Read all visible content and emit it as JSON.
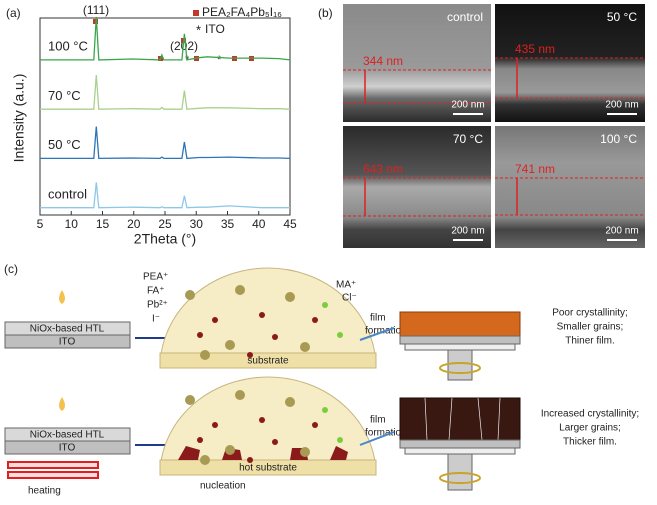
{
  "chart_data": {
    "type": "line",
    "label": "(a)",
    "xlabel": "2Theta (°)",
    "ylabel": "Intensity (a.u.)",
    "x": [
      5,
      13.6,
      14.0,
      14.4,
      19.8,
      24.2,
      24.5,
      24.8,
      27.7,
      28.1,
      28.5,
      30.4,
      31.8,
      35.3,
      40.5,
      43.2,
      45
    ],
    "xlim": [
      5,
      45
    ],
    "xticks": [
      5,
      10,
      15,
      20,
      25,
      30,
      35,
      40,
      45
    ],
    "ylim": [
      0,
      100
    ],
    "series": [
      {
        "name": "100 °C",
        "color": "#3aa64a",
        "values": [
          3,
          3,
          100,
          3,
          5,
          3,
          14,
          3,
          3,
          62,
          3,
          8,
          10,
          7,
          7,
          6,
          3
        ]
      },
      {
        "name": "70 °C",
        "color": "#a9d18e",
        "values": [
          3,
          3,
          80,
          3,
          4,
          3,
          7,
          3,
          3,
          45,
          3,
          5,
          6,
          6,
          4,
          4,
          3
        ]
      },
      {
        "name": "50 °C",
        "color": "#2e75b6",
        "values": [
          3,
          3,
          75,
          3,
          4,
          3,
          6,
          3,
          3,
          40,
          3,
          5,
          5,
          6,
          4,
          4,
          3
        ]
      },
      {
        "name": "control",
        "color": "#8ec8e8",
        "values": [
          3,
          3,
          60,
          3,
          4,
          3,
          5,
          3,
          3,
          30,
          3,
          4,
          4,
          7,
          3,
          3,
          3
        ]
      }
    ],
    "annotations": {
      "peak_111": "(111)",
      "peak_202": "(202)",
      "phase": "PEA₂FA₄Pb₅I₁₆",
      "ito": "ITO"
    }
  },
  "sem": {
    "label": "(b)",
    "images": [
      {
        "title": "control",
        "thickness": "344 nm",
        "scale": "200 nm"
      },
      {
        "title": "50 °C",
        "thickness": "435 nm",
        "scale": "200 nm"
      },
      {
        "title": "70 °C",
        "thickness": "643 nm",
        "scale": "200 nm"
      },
      {
        "title": "100 °C",
        "thickness": "741 nm",
        "scale": "200 nm"
      }
    ]
  },
  "schematic": {
    "label": "(c)",
    "htl": "NiOx-based HTL",
    "ito": "ITO",
    "ions": [
      "PEA⁺",
      "FA⁺",
      "Pb²⁺",
      "I⁻",
      "MA⁺",
      "Cl⁻"
    ],
    "substrate": "substrate",
    "hot_substrate": "hot substrate",
    "nucleation": "nucleation",
    "heating": "heating",
    "film_formation": [
      "film",
      "formation"
    ],
    "result_top": [
      "Poor crystallinity;",
      "Smaller grains;",
      "Thiner film."
    ],
    "result_bottom": [
      "Increased crystallinity;",
      "Larger grains;",
      "Thicker film."
    ]
  }
}
